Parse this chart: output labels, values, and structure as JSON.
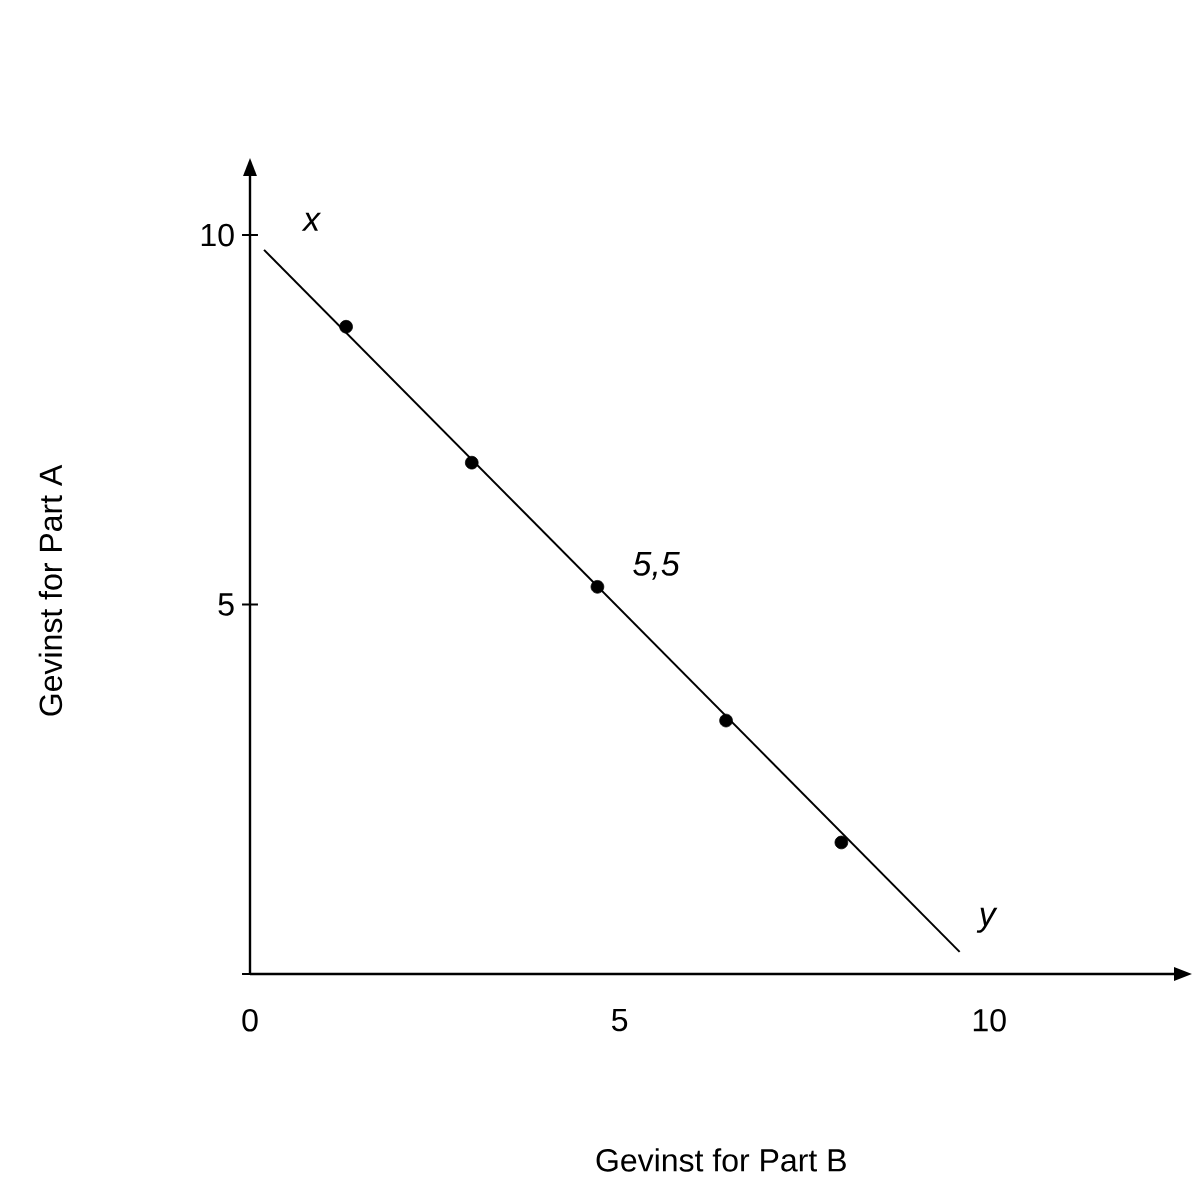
{
  "chart_data": {
    "type": "scatter",
    "xlabel": "Gevinst for Part B",
    "ylabel": "Gevinst for Part A",
    "xlim": [
      0,
      12.5
    ],
    "ylim": [
      0,
      10.8
    ],
    "xticks": [
      0,
      5,
      10
    ],
    "yticks": [
      {
        "value": 0,
        "label": null
      },
      5,
      10
    ],
    "series": [
      {
        "type": "line",
        "color": "#000000",
        "marker": "none",
        "x": [
          0.19,
          9.6
        ],
        "values": [
          9.8,
          0.3
        ]
      },
      {
        "color": "#000000",
        "marker": "circle",
        "x": [
          1.3,
          3.0,
          4.7,
          6.44,
          8.0
        ],
        "values": [
          8.76,
          6.92,
          5.24,
          3.43,
          1.78
        ]
      }
    ],
    "annotations": [
      {
        "text": "x",
        "x": 0.19,
        "y": 9.8
      },
      {
        "text": "5,5",
        "x": 4.7,
        "y": 5.24
      },
      {
        "text": "y",
        "x": 9.6,
        "y": 0.3
      }
    ]
  }
}
